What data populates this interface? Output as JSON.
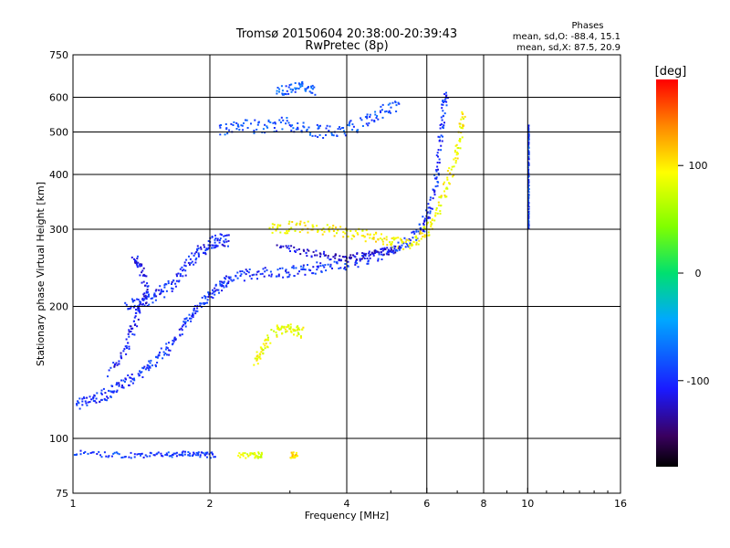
{
  "chart_data": {
    "type": "scatter",
    "title": "Tromsø 20150604 20:38:00-20:39:43",
    "subtitle": "RwPretec (8p)",
    "xlabel": "Frequency [MHz]",
    "ylabel": "Stationary phase Virtual Height [km]",
    "x_scale": "log",
    "y_scale": "log",
    "xlim": [
      1,
      16
    ],
    "ylim": [
      75,
      750
    ],
    "x_ticks": [
      {
        "value": 1,
        "label": "1"
      },
      {
        "value": 2,
        "label": "2"
      },
      {
        "value": 4,
        "label": "4"
      },
      {
        "value": 6,
        "label": "6"
      },
      {
        "value": 8,
        "label": "8"
      },
      {
        "value": 10,
        "label": "10"
      },
      {
        "value": 16,
        "label": "16"
      }
    ],
    "y_ticks": [
      {
        "value": 75,
        "label": "75"
      },
      {
        "value": 100,
        "label": "100"
      },
      {
        "value": 200,
        "label": "200"
      },
      {
        "value": 300,
        "label": "300"
      },
      {
        "value": 400,
        "label": "400"
      },
      {
        "value": 500,
        "label": "500"
      },
      {
        "value": 600,
        "label": "600"
      },
      {
        "value": 750,
        "label": "750"
      }
    ],
    "x_gridlines": [
      2,
      4,
      6,
      8,
      10
    ],
    "y_gridlines": [
      100,
      200,
      300,
      400,
      500,
      600
    ],
    "stats_title": "Phases",
    "stats_lines": [
      "mean, sd,O: -88.4, 15.1",
      "mean, sd,X: 87.5, 20.9"
    ],
    "colorbar": {
      "label": "[deg]",
      "range": [
        -180,
        180
      ],
      "ticks": [
        {
          "value": 100,
          "label": "100"
        },
        {
          "value": 0,
          "label": "0"
        },
        {
          "value": -100,
          "label": "-100"
        }
      ]
    },
    "traces": [
      {
        "points": [
          [
            1.0,
            120
          ],
          [
            1.08,
            122
          ],
          [
            1.15,
            125
          ],
          [
            1.22,
            130
          ],
          [
            1.3,
            135
          ],
          [
            1.4,
            140
          ],
          [
            1.5,
            150
          ],
          [
            1.6,
            160
          ],
          [
            1.7,
            175
          ],
          [
            1.8,
            190
          ],
          [
            1.9,
            205
          ],
          [
            2.0,
            215
          ],
          [
            2.1,
            225
          ],
          [
            2.2,
            232
          ],
          [
            2.4,
            238
          ],
          [
            2.7,
            240
          ],
          [
            3.0,
            242
          ],
          [
            3.3,
            245
          ],
          [
            3.6,
            248
          ],
          [
            4.0,
            252
          ],
          [
            4.4,
            258
          ],
          [
            4.8,
            265
          ],
          [
            5.2,
            275
          ],
          [
            5.6,
            290
          ],
          [
            5.9,
            310
          ],
          [
            6.1,
            340
          ],
          [
            6.3,
            400
          ],
          [
            6.4,
            480
          ],
          [
            6.5,
            560
          ],
          [
            6.6,
            620
          ]
        ],
        "phase": -100,
        "spread": 0.012
      },
      {
        "points": [
          [
            1.3,
            200
          ],
          [
            1.4,
            205
          ],
          [
            1.5,
            210
          ],
          [
            1.6,
            220
          ],
          [
            1.7,
            235
          ],
          [
            1.8,
            255
          ],
          [
            1.9,
            270
          ],
          [
            2.0,
            280
          ],
          [
            2.1,
            285
          ],
          [
            2.2,
            285
          ]
        ],
        "phase": -105,
        "spread": 0.014
      },
      {
        "points": [
          [
            1.0,
            93
          ],
          [
            1.2,
            92
          ],
          [
            1.4,
            92
          ],
          [
            1.6,
            92
          ],
          [
            1.75,
            93
          ],
          [
            1.9,
            92
          ],
          [
            2.05,
            92
          ]
        ],
        "phase": -95,
        "spread": 0.006
      },
      {
        "points": [
          [
            2.3,
            92
          ],
          [
            2.5,
            92
          ],
          [
            2.6,
            92
          ]
        ],
        "phase": 80,
        "spread": 0.006
      },
      {
        "points": [
          [
            3.0,
            92
          ],
          [
            3.1,
            92
          ]
        ],
        "phase": 110,
        "spread": 0.006
      },
      {
        "points": [
          [
            2.1,
            510
          ],
          [
            2.3,
            520
          ],
          [
            2.6,
            515
          ],
          [
            2.9,
            525
          ],
          [
            3.2,
            510
          ],
          [
            3.6,
            500
          ],
          [
            4.0,
            510
          ],
          [
            4.4,
            530
          ],
          [
            4.8,
            560
          ],
          [
            5.2,
            580
          ]
        ],
        "phase": -85,
        "spread": 0.014
      },
      {
        "points": [
          [
            2.8,
            620
          ],
          [
            3.0,
            630
          ],
          [
            3.2,
            640
          ],
          [
            3.4,
            625
          ]
        ],
        "phase": -80,
        "spread": 0.01
      },
      {
        "points": [
          [
            2.7,
            300
          ],
          [
            3.0,
            305
          ],
          [
            3.3,
            305
          ],
          [
            3.7,
            300
          ],
          [
            4.1,
            295
          ],
          [
            4.5,
            290
          ],
          [
            4.9,
            283
          ],
          [
            5.3,
            278
          ],
          [
            5.7,
            285
          ],
          [
            6.0,
            300
          ],
          [
            6.3,
            330
          ],
          [
            6.6,
            380
          ],
          [
            6.9,
            440
          ],
          [
            7.1,
            500
          ],
          [
            7.2,
            550
          ]
        ],
        "phase": 95,
        "spread": 0.012
      },
      {
        "points": [
          [
            2.8,
            275
          ],
          [
            3.2,
            268
          ],
          [
            3.6,
            262
          ],
          [
            4.0,
            260
          ],
          [
            4.4,
            262
          ],
          [
            4.8,
            268
          ],
          [
            5.2,
            272
          ]
        ],
        "phase": -120,
        "spread": 0.008
      },
      {
        "points": [
          [
            2.75,
            175
          ],
          [
            2.9,
            180
          ],
          [
            3.05,
            178
          ],
          [
            3.2,
            175
          ]
        ],
        "phase": 85,
        "spread": 0.012
      },
      {
        "points": [
          [
            2.5,
            150
          ],
          [
            2.6,
            160
          ],
          [
            2.7,
            170
          ]
        ],
        "phase": 90,
        "spread": 0.01
      },
      {
        "points": [
          [
            1.2,
            140
          ],
          [
            1.3,
            160
          ],
          [
            1.35,
            180
          ],
          [
            1.4,
            200
          ],
          [
            1.45,
            220
          ],
          [
            1.4,
            250
          ],
          [
            1.35,
            260
          ]
        ],
        "phase": -110,
        "spread": 0.012
      },
      {
        "points": [
          [
            10.0,
            520
          ],
          [
            10.0,
            470
          ],
          [
            10.0,
            420
          ],
          [
            10.0,
            370
          ],
          [
            10.0,
            330
          ],
          [
            10.0,
            300
          ]
        ],
        "phase": -90,
        "spread": 0.002
      }
    ]
  }
}
